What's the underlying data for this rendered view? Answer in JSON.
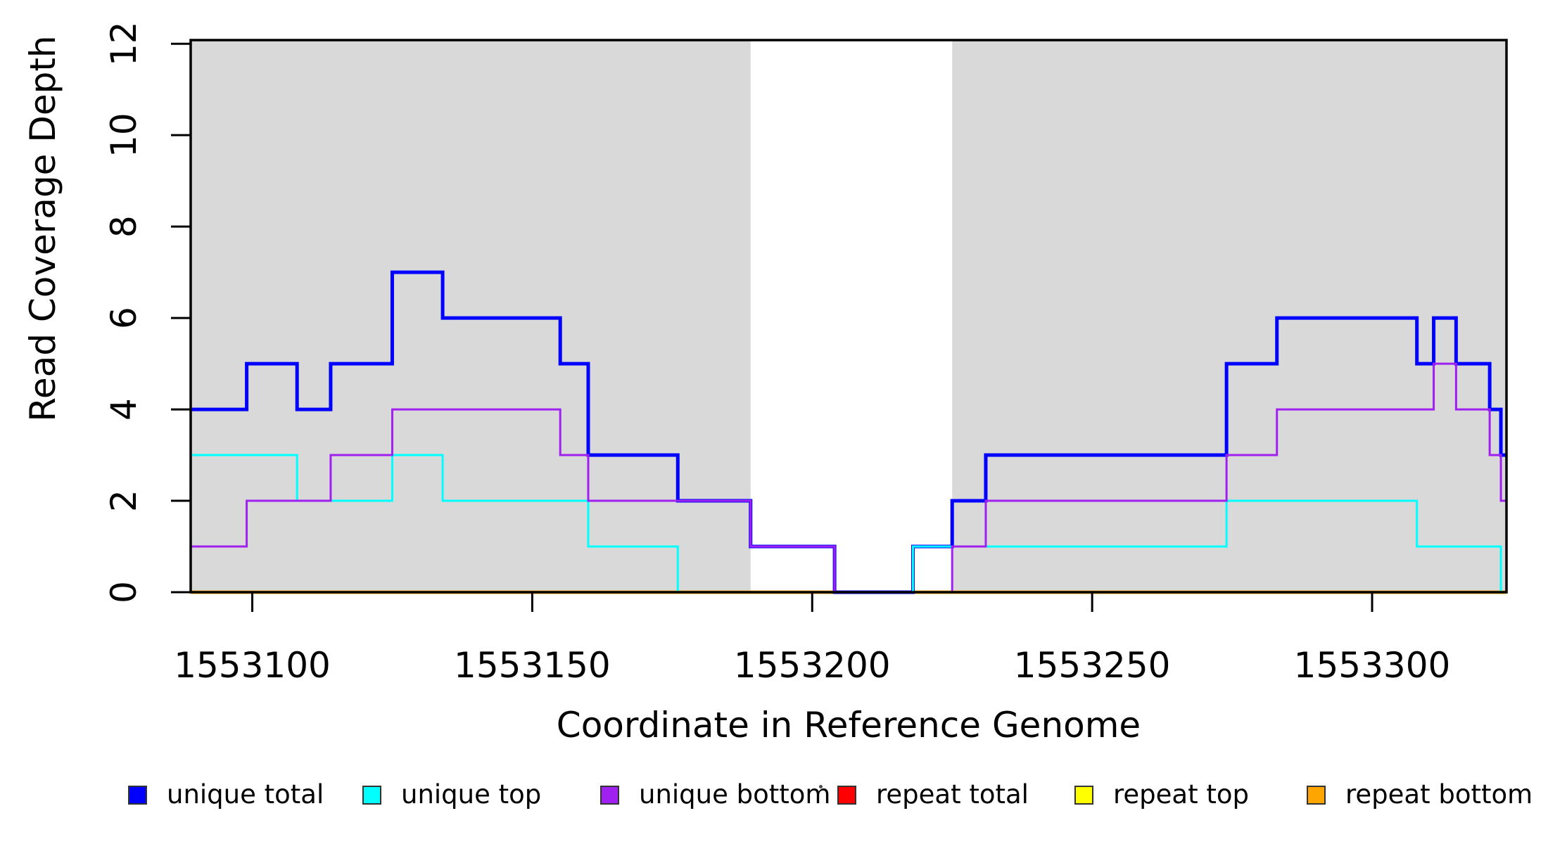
{
  "figure": {
    "ylabel": "Read Coverage Depth",
    "xlabel": "Coordinate in Reference Genome",
    "y_ticks": [
      "0",
      "2",
      "4",
      "6",
      "8",
      "10",
      "12"
    ],
    "y_tick_values": [
      0,
      2,
      4,
      6,
      8,
      10,
      12
    ],
    "x_ticks": [
      "1553100",
      "1553150",
      "1553200",
      "1553250",
      "1553300"
    ],
    "x_tick_values": [
      1553100,
      1553150,
      1553200,
      1553250,
      1553300
    ],
    "x_domain": [
      1553089,
      1553324
    ],
    "y_domain": [
      0,
      12.08
    ],
    "shaded_color": "#d9d9d9",
    "axis_color": "#000000",
    "background_color": "#ffffff"
  },
  "chart_data": {
    "type": "line",
    "subtype": "step-post",
    "title": "",
    "xlabel": "Coordinate in Reference Genome",
    "ylabel": "Read Coverage Depth",
    "xlim": [
      1553089,
      1553324
    ],
    "ylim": [
      0,
      12
    ],
    "grid": false,
    "legend_position": "bottom",
    "shaded_x_ranges": [
      [
        1553089,
        1553189
      ],
      [
        1553225,
        1553324
      ]
    ],
    "draw_order": [
      "repeat total",
      "repeat top",
      "repeat bottom",
      "unique total",
      "unique top",
      "unique bottom"
    ],
    "series": [
      {
        "name": "unique total",
        "color": "#0000ff",
        "line_width": 5,
        "points": [
          [
            1553089,
            4
          ],
          [
            1553099,
            5
          ],
          [
            1553108,
            4
          ],
          [
            1553114,
            5
          ],
          [
            1553125,
            7
          ],
          [
            1553134,
            6
          ],
          [
            1553155,
            5
          ],
          [
            1553160,
            3
          ],
          [
            1553176,
            2
          ],
          [
            1553189,
            1
          ],
          [
            1553204,
            0
          ],
          [
            1553218,
            1
          ],
          [
            1553225,
            2
          ],
          [
            1553231,
            3
          ],
          [
            1553274,
            5
          ],
          [
            1553283,
            6
          ],
          [
            1553308,
            5
          ],
          [
            1553311,
            6
          ],
          [
            1553315,
            5
          ],
          [
            1553321,
            4
          ],
          [
            1553323,
            3
          ]
        ]
      },
      {
        "name": "unique top",
        "color": "#00ffff",
        "line_width": 3,
        "points": [
          [
            1553089,
            3
          ],
          [
            1553108,
            2
          ],
          [
            1553125,
            3
          ],
          [
            1553134,
            2
          ],
          [
            1553160,
            1
          ],
          [
            1553176,
            0
          ],
          [
            1553218,
            1
          ],
          [
            1553274,
            2
          ],
          [
            1553308,
            1
          ],
          [
            1553323,
            0
          ]
        ]
      },
      {
        "name": "unique bottom",
        "color": "#a020f0",
        "line_width": 3,
        "points": [
          [
            1553089,
            1
          ],
          [
            1553099,
            2
          ],
          [
            1553114,
            3
          ],
          [
            1553125,
            4
          ],
          [
            1553155,
            3
          ],
          [
            1553160,
            2
          ],
          [
            1553189,
            1
          ],
          [
            1553204,
            0
          ],
          [
            1553225,
            1
          ],
          [
            1553231,
            2
          ],
          [
            1553274,
            3
          ],
          [
            1553283,
            4
          ],
          [
            1553311,
            5
          ],
          [
            1553315,
            4
          ],
          [
            1553321,
            3
          ],
          [
            1553323,
            2
          ]
        ]
      },
      {
        "name": "repeat total",
        "color": "#ff0000",
        "line_width": 3,
        "points": [
          [
            1553089,
            0
          ]
        ]
      },
      {
        "name": "repeat top",
        "color": "#ffff00",
        "line_width": 3,
        "points": [
          [
            1553089,
            0
          ]
        ]
      },
      {
        "name": "repeat bottom",
        "color": "#ffa500",
        "line_width": 5,
        "points": [
          [
            1553089,
            0
          ]
        ]
      }
    ]
  },
  "legend": {
    "items": [
      {
        "label": "unique total",
        "color": "#0000ff"
      },
      {
        "label": "unique top",
        "color": "#00ffff"
      },
      {
        "label": "unique bottom",
        "color": "#a020f0"
      },
      {
        "label": "repeat total",
        "color": "#ff0000"
      },
      {
        "label": "repeat top",
        "color": "#ffff00"
      },
      {
        "label": "repeat bottom",
        "color": "#ffa500"
      }
    ]
  }
}
